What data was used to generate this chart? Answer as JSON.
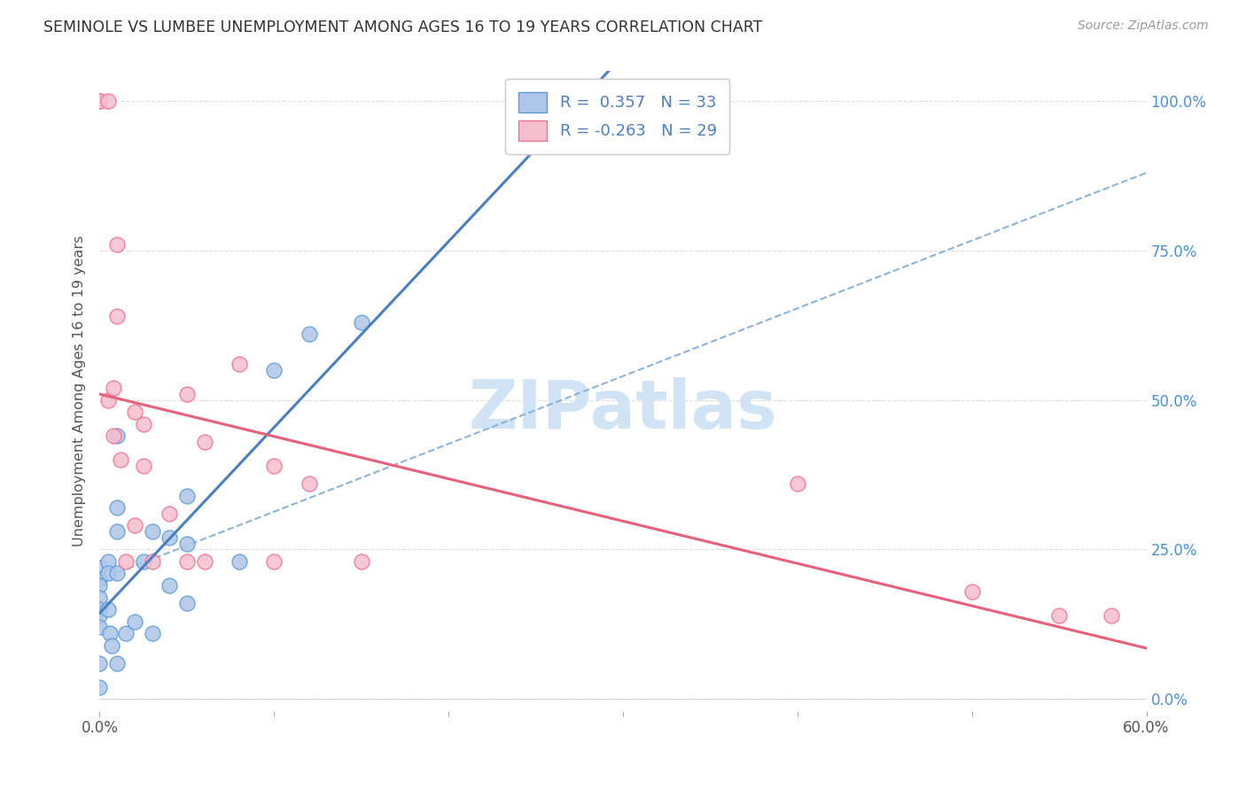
{
  "title": "SEMINOLE VS LUMBEE UNEMPLOYMENT AMONG AGES 16 TO 19 YEARS CORRELATION CHART",
  "source": "Source: ZipAtlas.com",
  "ylabel": "Unemployment Among Ages 16 to 19 years",
  "xlim": [
    0.0,
    0.6
  ],
  "ylim": [
    -0.02,
    1.05
  ],
  "x_ticks": [
    0.0,
    0.1,
    0.2,
    0.3,
    0.4,
    0.5,
    0.6
  ],
  "y_ticks": [
    0.0,
    0.25,
    0.5,
    0.75,
    1.0
  ],
  "y_tick_labels_right": [
    "0.0%",
    "25.0%",
    "50.0%",
    "75.0%",
    "100.0%"
  ],
  "seminole_color": "#aec6e8",
  "lumbee_color": "#f5bece",
  "seminole_edge_color": "#5b9bd5",
  "lumbee_edge_color": "#f07090",
  "seminole_line_color": "#4a7fc1",
  "lumbee_line_color": "#e8607a",
  "dash_line_color": "#8ab4d8",
  "watermark_color": "#d0e4f5",
  "legend_R_seminole": "R =  0.357",
  "legend_N_seminole": "N = 33",
  "legend_R_lumbee": "R = -0.263",
  "legend_N_lumbee": "N = 29",
  "seminole_x": [
    0.0,
    0.0,
    0.0,
    0.0,
    0.0,
    0.0,
    0.0,
    0.0,
    0.0,
    0.005,
    0.005,
    0.005,
    0.006,
    0.007,
    0.01,
    0.01,
    0.01,
    0.01,
    0.01,
    0.015,
    0.02,
    0.025,
    0.03,
    0.03,
    0.04,
    0.04,
    0.05,
    0.05,
    0.05,
    0.08,
    0.1,
    0.12,
    0.15
  ],
  "seminole_y": [
    0.22,
    0.2,
    0.19,
    0.17,
    0.15,
    0.14,
    0.12,
    0.06,
    0.02,
    0.23,
    0.21,
    0.15,
    0.11,
    0.09,
    0.44,
    0.32,
    0.28,
    0.21,
    0.06,
    0.11,
    0.13,
    0.23,
    0.28,
    0.11,
    0.27,
    0.19,
    0.34,
    0.26,
    0.16,
    0.23,
    0.55,
    0.61,
    0.63
  ],
  "lumbee_x": [
    0.0,
    0.0,
    0.005,
    0.005,
    0.008,
    0.008,
    0.01,
    0.01,
    0.012,
    0.015,
    0.02,
    0.02,
    0.025,
    0.025,
    0.03,
    0.04,
    0.05,
    0.05,
    0.06,
    0.06,
    0.08,
    0.1,
    0.1,
    0.12,
    0.15,
    0.4,
    0.5,
    0.55,
    0.58
  ],
  "lumbee_y": [
    1.0,
    1.0,
    1.0,
    0.5,
    0.52,
    0.44,
    0.76,
    0.64,
    0.4,
    0.23,
    0.48,
    0.29,
    0.46,
    0.39,
    0.23,
    0.31,
    0.51,
    0.23,
    0.43,
    0.23,
    0.56,
    0.39,
    0.23,
    0.36,
    0.23,
    0.36,
    0.18,
    0.14,
    0.14
  ],
  "background_color": "#ffffff",
  "grid_color": "#dddddd"
}
